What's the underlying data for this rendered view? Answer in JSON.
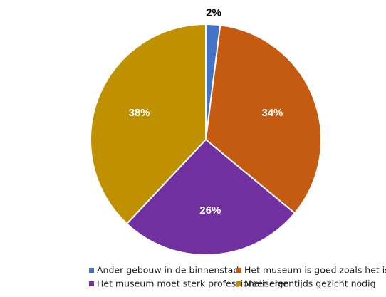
{
  "chart_data": {
    "type": "pie",
    "title": "",
    "slices": [
      {
        "label": "Ander gebouw in de binnenstad",
        "value": 2,
        "display": "2%",
        "color": "#4472C4",
        "label_outside": true
      },
      {
        "label": "Het museum is goed zoals het is",
        "value": 34,
        "display": "34%",
        "color": "#C55A11",
        "label_outside": false
      },
      {
        "label": "Het museum moet sterk professionaliseren",
        "value": 26,
        "display": "26%",
        "color": "#7030A0",
        "label_outside": false
      },
      {
        "label": "Meer eigentijds gezicht nodig",
        "value": 38,
        "display": "38%",
        "color": "#BF9000",
        "label_outside": false
      }
    ],
    "start_angle": "12 o'clock",
    "direction": "clockwise",
    "legend_position": "bottom",
    "legend_columns": 2
  }
}
